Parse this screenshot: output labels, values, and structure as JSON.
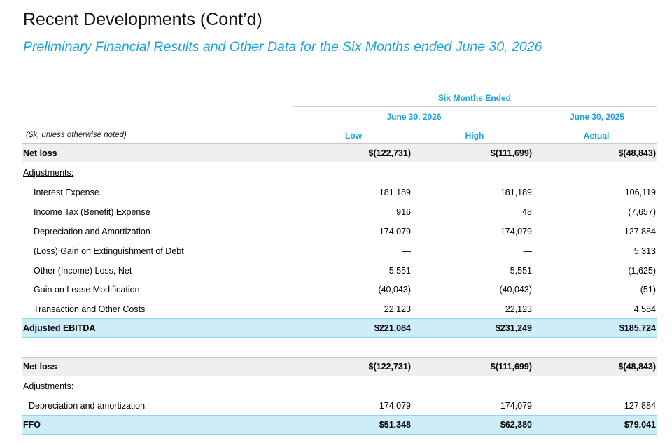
{
  "title": "Recent Developments (Cont’d)",
  "subtitle": "Preliminary Financial Results and Other Data for the Six Months ended June 30, 2026",
  "header": {
    "group": "Six Months Ended",
    "period1": "June 30, 2026",
    "period2": "June 30, 2025",
    "col_low": "Low",
    "col_high": "High",
    "col_actual": "Actual"
  },
  "units_note": "($k, unless otherwise noted)",
  "table1": {
    "net_loss": {
      "label": "Net loss",
      "low": "$(122,731)",
      "high": "$(111,699)",
      "actual": "$(48,843)"
    },
    "adjustments_label": "Adjustments:",
    "items": [
      {
        "label": "Interest Expense",
        "low": "181,189",
        "high": "181,189",
        "actual": "106,119"
      },
      {
        "label": "Income Tax (Benefit) Expense",
        "low": "916",
        "high": "48",
        "actual": "(7,657)"
      },
      {
        "label": "Depreciation and Amortization",
        "low": "174,079",
        "high": "174,079",
        "actual": "127,884"
      },
      {
        "label": "(Loss) Gain on Extinguishment of Debt",
        "low": "—",
        "high": "—",
        "actual": "5,313"
      },
      {
        "label": "Other (Income) Loss, Net",
        "low": "5,551",
        "high": "5,551",
        "actual": "(1,625)"
      },
      {
        "label": "Gain on Lease Modification",
        "low": "(40,043)",
        "high": "(40,043)",
        "actual": "(51)"
      },
      {
        "label": "Transaction and Other Costs",
        "low": "22,123",
        "high": "22,123",
        "actual": "4,584"
      }
    ],
    "total": {
      "label": "Adjusted EBITDA",
      "low": "$221,084",
      "high": "$231,249",
      "actual": "$185,724"
    }
  },
  "table2": {
    "net_loss": {
      "label": "Net loss",
      "low": "$(122,731)",
      "high": "$(111,699)",
      "actual": "$(48,843)"
    },
    "adjustments_label": "Adjustments:",
    "items": [
      {
        "label": "Depreciation and amortization",
        "low": "174,079",
        "high": "174,079",
        "actual": "127,884"
      }
    ],
    "total": {
      "label": "FFO",
      "low": "$51,348",
      "high": "$62,380",
      "actual": "$79,041"
    }
  }
}
